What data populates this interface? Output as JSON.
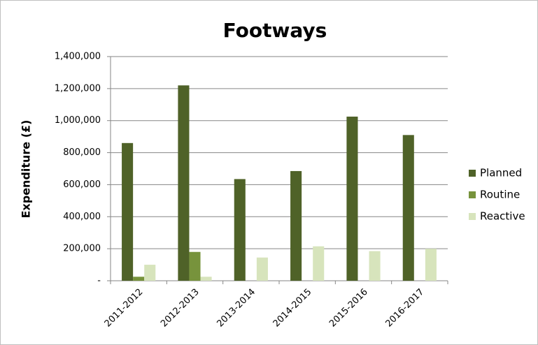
{
  "chart_data": {
    "type": "bar",
    "title": "Footways",
    "y_label": "Expenditure (£)",
    "categories": [
      "2011-2012",
      "2012-2013",
      "2013-2014",
      "2014-2015",
      "2015-2016",
      "2016-2017"
    ],
    "series": [
      {
        "name": "Planned",
        "color": "#4f6228",
        "values": [
          860000,
          1220000,
          635000,
          685000,
          1025000,
          910000
        ]
      },
      {
        "name": "Routine",
        "color": "#77933c",
        "values": [
          25000,
          180000,
          0,
          0,
          0,
          0
        ]
      },
      {
        "name": "Reactive",
        "color": "#d7e4bc",
        "values": [
          100000,
          25000,
          145000,
          215000,
          185000,
          200000
        ]
      }
    ],
    "ylim": [
      0,
      1400000
    ],
    "yticks": [
      {
        "value": 0,
        "label": "-"
      },
      {
        "value": 200000,
        "label": "200,000"
      },
      {
        "value": 400000,
        "label": "400,000"
      },
      {
        "value": 600000,
        "label": "600,000"
      },
      {
        "value": 800000,
        "label": "800,000"
      },
      {
        "value": 1000000,
        "label": "1,000,000"
      },
      {
        "value": 1200000,
        "label": "1,200,000"
      },
      {
        "value": 1400000,
        "label": "1,400,000"
      }
    ],
    "grid": true,
    "legend": "right"
  }
}
